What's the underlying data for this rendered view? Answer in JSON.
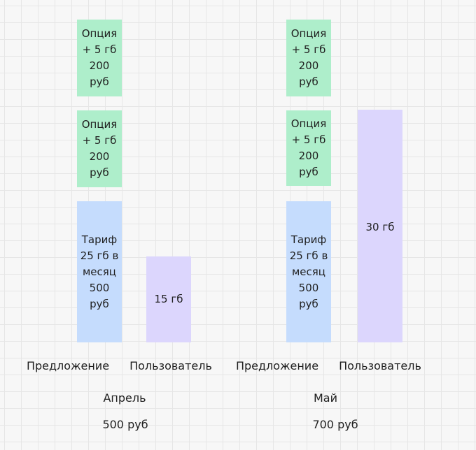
{
  "april": {
    "option_1": "Опция\n+ 5 гб\n200\nруб",
    "option_2": "Опция\n+ 5 гб\n200\nруб",
    "tariff": "Тариф\n25 гб в\nмесяц\n500\nруб",
    "user_usage": "15 гб",
    "offer_label": "Предложение",
    "user_label": "Пользователь",
    "month": "Апрель",
    "total": "500 руб"
  },
  "may": {
    "option_1": "Опция\n+ 5 гб\n200\nруб",
    "option_2": "Опция\n+ 5 гб\n200\nруб",
    "tariff": "Тариф\n25 гб в\nмесяц\n500\nруб",
    "user_usage": "30 гб",
    "offer_label": "Предложение",
    "user_label": "Пользователь",
    "month": "Май",
    "total": "700 руб"
  },
  "colors": {
    "option": "#aeeecb",
    "tariff": "#c5dcfd",
    "user": "#dcd6fd"
  }
}
